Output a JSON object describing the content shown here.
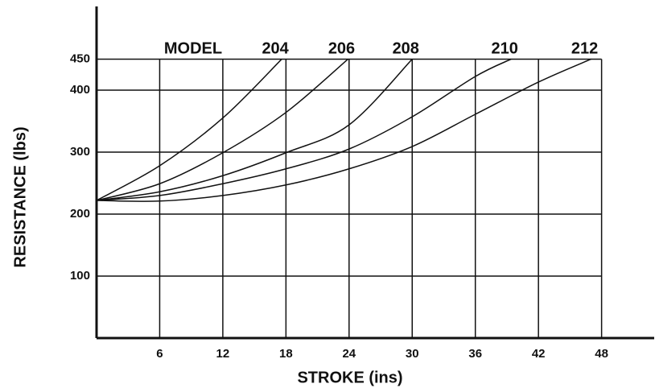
{
  "chart_data": {
    "type": "line",
    "xlabel": "STROKE (ins)",
    "ylabel": "RESISTANCE (lbs)",
    "annotation": "MODEL",
    "xlim": [
      0,
      53
    ],
    "ylim": [
      0,
      535
    ],
    "xticks": [
      6,
      12,
      18,
      24,
      30,
      36,
      42,
      48
    ],
    "yticks": [
      100,
      200,
      300,
      400,
      450
    ],
    "grid": true,
    "color": "#111111",
    "series": [
      {
        "name": "204",
        "color": "#111111",
        "x": [
          0,
          6,
          12,
          17.6
        ],
        "values": [
          222,
          278,
          355,
          450
        ]
      },
      {
        "name": "206",
        "color": "#111111",
        "x": [
          0,
          6,
          12,
          18,
          23.9
        ],
        "values": [
          222,
          249,
          299,
          364,
          450
        ]
      },
      {
        "name": "208",
        "color": "#111111",
        "x": [
          0,
          6,
          12,
          18,
          24,
          30
        ],
        "values": [
          222,
          236,
          262,
          299,
          344,
          450
        ]
      },
      {
        "name": "210",
        "color": "#111111",
        "x": [
          0,
          6,
          12,
          18,
          24,
          30,
          36,
          39.4
        ],
        "values": [
          222,
          230,
          249,
          273,
          305,
          357,
          422,
          450
        ]
      },
      {
        "name": "212",
        "color": "#111111",
        "x": [
          0,
          6,
          12,
          18,
          24,
          30,
          36,
          42,
          47
        ],
        "values": [
          222,
          221,
          230,
          247,
          273,
          309,
          361,
          413,
          450
        ]
      }
    ]
  }
}
